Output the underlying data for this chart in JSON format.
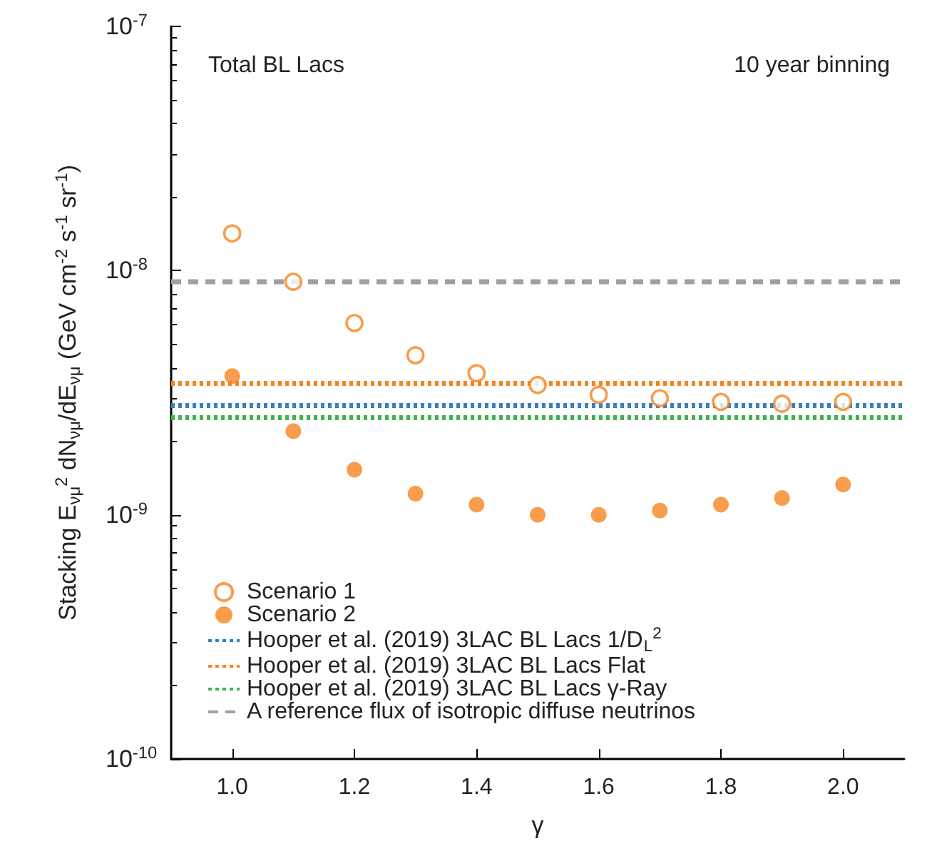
{
  "chart_data": {
    "type": "scatter",
    "xlabel": "γ",
    "ylabel": "Stacking E$_{νμ}$$^{2}$ dN$_{νμ}$/dE$_{νμ}$ (GeV cm$^{-2}$ s$^{-1}$ sr$^{-1}$)",
    "x": [
      1.0,
      1.1,
      1.2,
      1.3,
      1.4,
      1.5,
      1.6,
      1.7,
      1.8,
      1.9,
      2.0
    ],
    "series": [
      {
        "name": "Scenario 1",
        "color": "#f5841f",
        "values": [
          1.42e-08,
          9e-09,
          6.1e-09,
          4.5e-09,
          3.8e-09,
          3.4e-09,
          3.1e-09,
          3e-09,
          2.9e-09,
          2.85e-09,
          2.9e-09
        ]
      },
      {
        "name": "Scenario 2",
        "color": "#f5841f",
        "values": [
          3.7e-09,
          2.2e-09,
          1.53e-09,
          1.22e-09,
          1.1e-09,
          1e-09,
          1e-09,
          1.04e-09,
          1.1e-09,
          1.17e-09,
          1.33e-09
        ]
      }
    ],
    "ref_lines": [
      {
        "axis": "y",
        "value": 2.8e-09,
        "label": "Hooper et al. (2019) 3LAC BL Lacs 1/D$_{L}$$^{2}$",
        "color": "#3a7fc1",
        "line_style": "dotted"
      },
      {
        "axis": "y",
        "value": 3.45e-09,
        "label": "Hooper et al. (2019) 3LAC BL Lacs Flat",
        "color": "#f5841f",
        "line_style": "dotted"
      },
      {
        "axis": "y",
        "value": 2.5e-09,
        "label": "Hooper et al. (2019) 3LAC BL Lacs γ-Ray",
        "color": "#3fb34f",
        "line_style": "dotted"
      },
      {
        "axis": "y",
        "value": 9e-09,
        "label": "A reference flux of isotropic diffuse neutrinos",
        "color": "#a0a0a0",
        "line_style": "dashed"
      }
    ],
    "annotations": [
      "Total BL Lacs",
      "10 year binning"
    ],
    "log": "y",
    "xlim": [
      0.9,
      2.1
    ],
    "xticks": [
      {
        "value": 1.0,
        "label": "1.0"
      },
      1.2,
      1.4,
      1.6,
      1.8,
      {
        "value": 2.0,
        "label": "2.0"
      }
    ],
    "ylim": [
      1e-10,
      1e-07
    ],
    "yticks": [
      {
        "value": 1e-10,
        "label": "10$^{-10}$"
      },
      {
        "value": 1e-09,
        "label": "10$^{-9}$"
      },
      {
        "value": 1e-08,
        "label": "10$^{-8}$"
      },
      {
        "value": 1e-07,
        "label": "10$^{-7}$"
      }
    ],
    "marker": "circle",
    "legend": "bottom left"
  }
}
